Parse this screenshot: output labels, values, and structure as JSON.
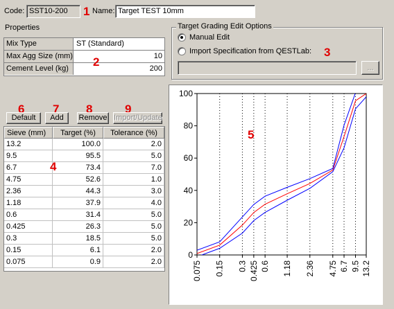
{
  "header": {
    "code_label": "Code:",
    "code_value": "SST10-200",
    "name_label": "Name:",
    "name_value": "Target TEST 10mm"
  },
  "properties": {
    "title": "Properties",
    "rows": [
      {
        "key": "Mix Type",
        "value": "ST (Standard)"
      },
      {
        "key": "Max Agg Size (mm)",
        "value": "10"
      },
      {
        "key": "Cement Level (kg)",
        "value": "200"
      }
    ]
  },
  "grading_options": {
    "title": "Target Grading Edit Options",
    "manual_edit_label": "Manual Edit",
    "import_label": "Import Specification from QESTLab:",
    "selected": "manual",
    "import_field_value": "",
    "browse_label": "..."
  },
  "toolbar": {
    "default_label": "Default",
    "add_label": "Add",
    "remove_label": "Remove",
    "import_update_label": "Import/Update"
  },
  "sieve_table": {
    "headers": [
      "Sieve (mm)",
      "Target (%)",
      "Tolerance (%)"
    ],
    "rows": [
      {
        "sieve": "13.2",
        "target": "100.0",
        "tolerance": "2.0"
      },
      {
        "sieve": "9.5",
        "target": "95.5",
        "tolerance": "5.0"
      },
      {
        "sieve": "6.7",
        "target": "73.4",
        "tolerance": "7.0"
      },
      {
        "sieve": "4.75",
        "target": "52.6",
        "tolerance": "1.0"
      },
      {
        "sieve": "2.36",
        "target": "44.3",
        "tolerance": "3.0"
      },
      {
        "sieve": "1.18",
        "target": "37.9",
        "tolerance": "4.0"
      },
      {
        "sieve": "0.6",
        "target": "31.4",
        "tolerance": "5.0"
      },
      {
        "sieve": "0.425",
        "target": "26.3",
        "tolerance": "5.0"
      },
      {
        "sieve": "0.3",
        "target": "18.5",
        "tolerance": "5.0"
      },
      {
        "sieve": "0.15",
        "target": "6.1",
        "tolerance": "2.0"
      },
      {
        "sieve": "0.075",
        "target": "0.9",
        "tolerance": "2.0"
      }
    ]
  },
  "annotations": [
    "1",
    "2",
    "3",
    "4",
    "5",
    "6",
    "7",
    "8",
    "9"
  ],
  "colors": {
    "target_line": "#ff0000",
    "tolerance_lines": "#0000ff",
    "annotation": "#e00000"
  },
  "chart_data": {
    "type": "line",
    "x_scale": "log",
    "ylim": [
      0,
      100
    ],
    "y_ticks": [
      "0",
      "20",
      "40",
      "60",
      "80",
      "100"
    ],
    "x_tick_labels": [
      "0.075",
      "0.15",
      "0.3",
      "0.425",
      "0.6",
      "1.18",
      "2.36",
      "4.75",
      "6.7",
      "9.5",
      "13.2"
    ],
    "x": [
      0.075,
      0.15,
      0.3,
      0.425,
      0.6,
      1.18,
      2.36,
      4.75,
      6.7,
      9.5,
      13.2
    ],
    "grid": "vertical-dotted",
    "series": [
      {
        "values": [
          0.9,
          6.1,
          18.5,
          26.3,
          31.4,
          37.9,
          44.3,
          52.6,
          73.4,
          95.5,
          100.0
        ],
        "color": "#ff0000"
      },
      {
        "values": [
          2.9,
          8.1,
          23.5,
          31.3,
          36.4,
          41.9,
          47.3,
          53.6,
          80.4,
          100.5,
          102.0
        ],
        "color": "#0000ff"
      },
      {
        "values": [
          -1.1,
          4.1,
          13.5,
          21.3,
          26.4,
          33.9,
          41.3,
          51.6,
          66.4,
          90.5,
          98.0
        ],
        "color": "#0000ff"
      }
    ]
  }
}
